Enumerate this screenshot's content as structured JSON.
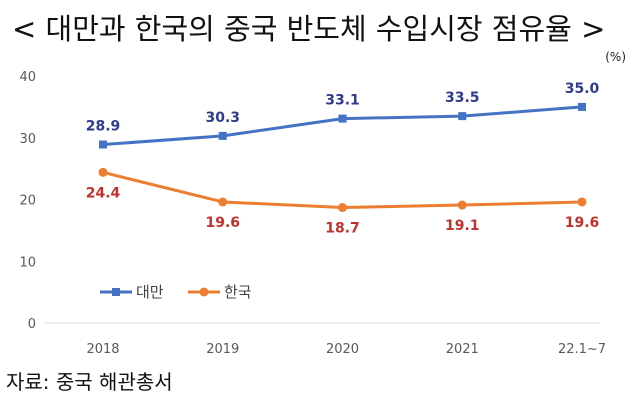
{
  "header": {
    "title": "< 대만과 한국의 중국 반도체 수입시장 점유율 >",
    "unit": "(%)"
  },
  "footer": {
    "source": "자료: 중국 해관총서"
  },
  "chart_data": {
    "type": "line",
    "categories": [
      "2018",
      "2019",
      "2020",
      "2021",
      "22.1~7"
    ],
    "ylim": [
      0,
      40
    ],
    "yticks": [
      "0",
      "10",
      "20",
      "30",
      "40"
    ],
    "grid": false,
    "legend_position": "bottom-left",
    "series": [
      {
        "name": "대만",
        "values": [
          28.9,
          30.3,
          33.1,
          33.5,
          35.0
        ],
        "labels": [
          "28.9",
          "30.3",
          "33.1",
          "33.5",
          "35.0"
        ],
        "color": "#4472C4",
        "label_color": "#2F3C8C",
        "marker": "square"
      },
      {
        "name": "한국",
        "values": [
          24.4,
          19.6,
          18.7,
          19.1,
          19.6
        ],
        "labels": [
          "24.4",
          "19.6",
          "18.7",
          "19.1",
          "19.6"
        ],
        "color": "#ED7D31",
        "label_color": "#C0322B",
        "marker": "circle"
      }
    ]
  }
}
